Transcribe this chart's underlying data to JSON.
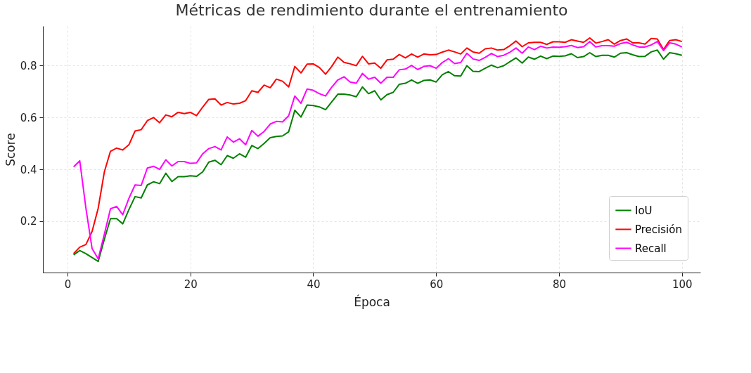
{
  "chart_data": {
    "type": "line",
    "title": "Métricas de rendimiento durante el entrenamiento",
    "xlabel": "Época",
    "ylabel": "Score",
    "xlim": [
      -4,
      103
    ],
    "ylim": [
      0.002,
      0.953
    ],
    "xticks": [
      0,
      20,
      40,
      60,
      80,
      100
    ],
    "yticks": [
      0.2,
      0.4,
      0.6,
      0.8
    ],
    "grid": true,
    "legend": "bottom right",
    "line_style": "solid",
    "x": [
      1,
      2,
      3,
      4,
      5,
      6,
      7,
      8,
      9,
      10,
      11,
      12,
      13,
      14,
      15,
      16,
      17,
      18,
      19,
      20,
      21,
      22,
      23,
      24,
      25,
      26,
      27,
      28,
      29,
      30,
      31,
      32,
      33,
      34,
      35,
      36,
      37,
      38,
      39,
      40,
      41,
      42,
      43,
      44,
      45,
      46,
      47,
      48,
      49,
      50,
      51,
      52,
      53,
      54,
      55,
      56,
      57,
      58,
      59,
      60,
      61,
      62,
      63,
      64,
      65,
      66,
      67,
      68,
      69,
      70,
      71,
      72,
      73,
      74,
      75,
      76,
      77,
      78,
      79,
      80,
      81,
      82,
      83,
      84,
      85,
      86,
      87,
      88,
      89,
      90,
      91,
      92,
      93,
      94,
      95,
      96,
      97,
      98,
      99,
      100
    ],
    "series": [
      {
        "name": "IoU",
        "color": "#008000",
        "values": [
          0.07,
          0.087,
          0.075,
          0.06,
          0.045,
          0.13,
          0.21,
          0.21,
          0.19,
          0.245,
          0.295,
          0.29,
          0.34,
          0.352,
          0.345,
          0.385,
          0.353,
          0.372,
          0.372,
          0.375,
          0.373,
          0.39,
          0.428,
          0.435,
          0.418,
          0.453,
          0.443,
          0.46,
          0.447,
          0.492,
          0.48,
          0.5,
          0.522,
          0.527,
          0.529,
          0.545,
          0.628,
          0.602,
          0.648,
          0.646,
          0.641,
          0.63,
          0.66,
          0.69,
          0.69,
          0.687,
          0.68,
          0.718,
          0.692,
          0.703,
          0.668,
          0.688,
          0.697,
          0.728,
          0.732,
          0.745,
          0.732,
          0.743,
          0.745,
          0.737,
          0.765,
          0.777,
          0.761,
          0.76,
          0.8,
          0.778,
          0.777,
          0.79,
          0.802,
          0.792,
          0.8,
          0.815,
          0.83,
          0.81,
          0.833,
          0.825,
          0.837,
          0.827,
          0.837,
          0.836,
          0.838,
          0.846,
          0.831,
          0.835,
          0.85,
          0.835,
          0.84,
          0.84,
          0.833,
          0.848,
          0.85,
          0.842,
          0.835,
          0.836,
          0.853,
          0.86,
          0.825,
          0.85,
          0.846,
          0.84
        ]
      },
      {
        "name": "Precisión",
        "color": "#ff0000",
        "values": [
          0.075,
          0.1,
          0.11,
          0.16,
          0.25,
          0.39,
          0.47,
          0.482,
          0.475,
          0.495,
          0.548,
          0.553,
          0.588,
          0.6,
          0.58,
          0.61,
          0.603,
          0.62,
          0.615,
          0.62,
          0.607,
          0.64,
          0.67,
          0.672,
          0.648,
          0.658,
          0.652,
          0.655,
          0.665,
          0.703,
          0.697,
          0.725,
          0.715,
          0.748,
          0.74,
          0.718,
          0.797,
          0.772,
          0.806,
          0.807,
          0.793,
          0.767,
          0.797,
          0.833,
          0.813,
          0.807,
          0.8,
          0.836,
          0.807,
          0.81,
          0.79,
          0.822,
          0.825,
          0.843,
          0.83,
          0.845,
          0.833,
          0.845,
          0.842,
          0.843,
          0.852,
          0.86,
          0.853,
          0.845,
          0.868,
          0.853,
          0.848,
          0.865,
          0.868,
          0.86,
          0.862,
          0.877,
          0.895,
          0.873,
          0.888,
          0.89,
          0.89,
          0.882,
          0.892,
          0.892,
          0.89,
          0.9,
          0.895,
          0.89,
          0.907,
          0.887,
          0.893,
          0.9,
          0.883,
          0.897,
          0.903,
          0.888,
          0.888,
          0.883,
          0.905,
          0.903,
          0.862,
          0.897,
          0.9,
          0.893
        ]
      },
      {
        "name": "Recall",
        "color": "#ff00ff",
        "values": [
          0.41,
          0.433,
          0.25,
          0.095,
          0.055,
          0.15,
          0.248,
          0.257,
          0.225,
          0.288,
          0.34,
          0.338,
          0.405,
          0.412,
          0.4,
          0.437,
          0.413,
          0.43,
          0.43,
          0.423,
          0.425,
          0.46,
          0.48,
          0.488,
          0.475,
          0.525,
          0.505,
          0.518,
          0.495,
          0.55,
          0.528,
          0.546,
          0.575,
          0.585,
          0.583,
          0.607,
          0.683,
          0.655,
          0.71,
          0.705,
          0.692,
          0.683,
          0.717,
          0.745,
          0.757,
          0.737,
          0.732,
          0.77,
          0.748,
          0.755,
          0.732,
          0.755,
          0.755,
          0.784,
          0.787,
          0.801,
          0.785,
          0.797,
          0.8,
          0.79,
          0.812,
          0.827,
          0.808,
          0.812,
          0.848,
          0.826,
          0.82,
          0.832,
          0.847,
          0.835,
          0.84,
          0.852,
          0.868,
          0.848,
          0.872,
          0.862,
          0.875,
          0.868,
          0.872,
          0.871,
          0.873,
          0.878,
          0.87,
          0.873,
          0.893,
          0.872,
          0.877,
          0.877,
          0.875,
          0.885,
          0.89,
          0.88,
          0.872,
          0.872,
          0.88,
          0.893,
          0.858,
          0.888,
          0.883,
          0.872
        ]
      }
    ]
  }
}
